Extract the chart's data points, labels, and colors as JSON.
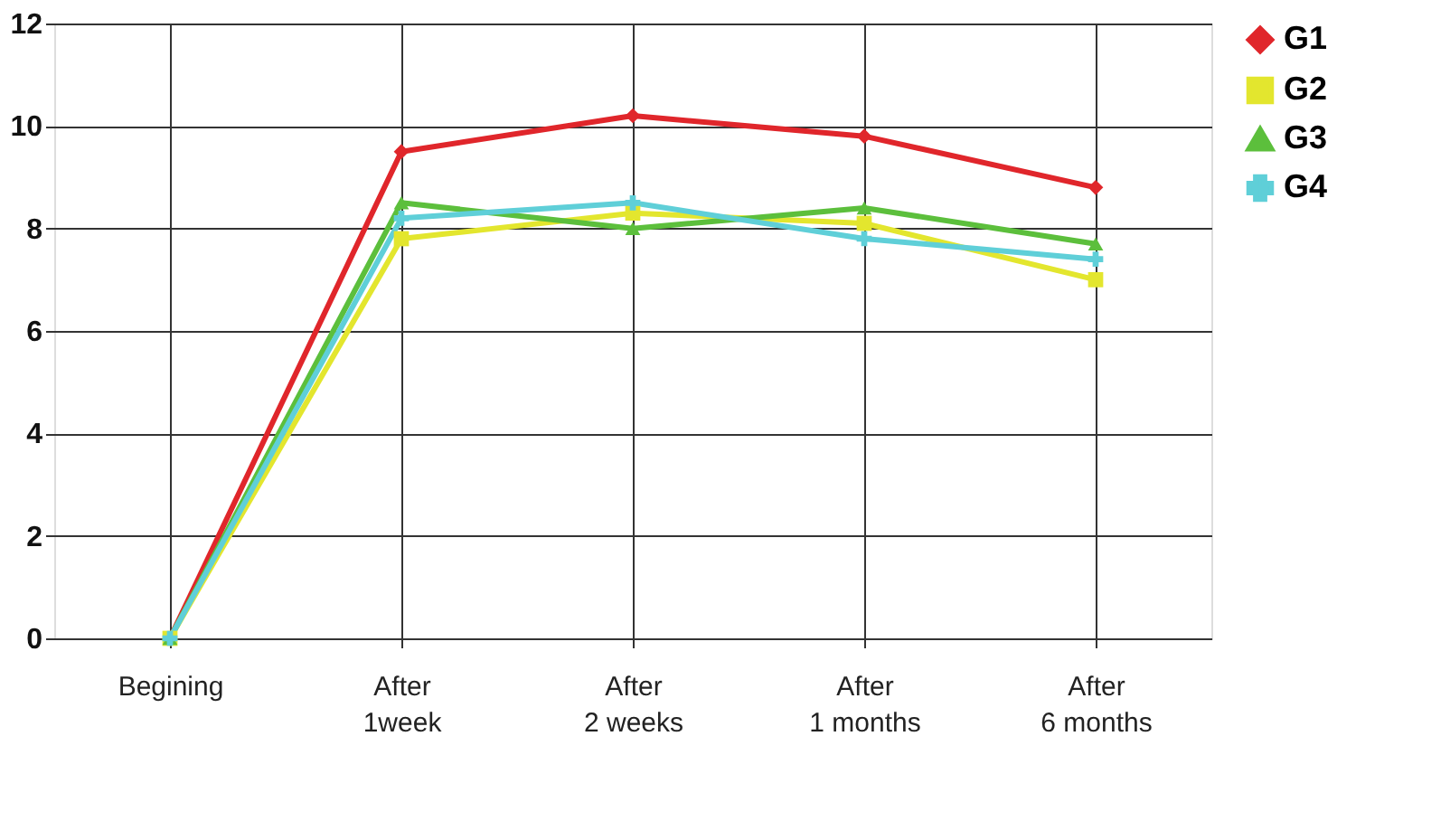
{
  "chart_data": {
    "type": "line",
    "categories": [
      "Begining",
      "After\n1week",
      "After\n2 weeks",
      "After\n1 months",
      "After\n6 months"
    ],
    "series": [
      {
        "name": "G1",
        "color": "#e0262b",
        "marker": "diamond",
        "values": [
          0,
          9.5,
          10.2,
          9.8,
          8.8
        ]
      },
      {
        "name": "G2",
        "color": "#e3e62e",
        "marker": "square",
        "values": [
          0,
          7.8,
          8.3,
          8.1,
          7.0
        ]
      },
      {
        "name": "G3",
        "color": "#5cbf3c",
        "marker": "triangle",
        "values": [
          0,
          8.5,
          8.0,
          8.4,
          7.7
        ]
      },
      {
        "name": "G4",
        "color": "#5fcfd8",
        "marker": "cross",
        "values": [
          0,
          8.2,
          8.5,
          7.8,
          7.4
        ]
      }
    ],
    "ylim": [
      0,
      12
    ],
    "yticks": [
      0,
      2,
      4,
      6,
      8,
      10,
      12
    ],
    "grid": true,
    "legend": "right",
    "line_style": "solid"
  }
}
